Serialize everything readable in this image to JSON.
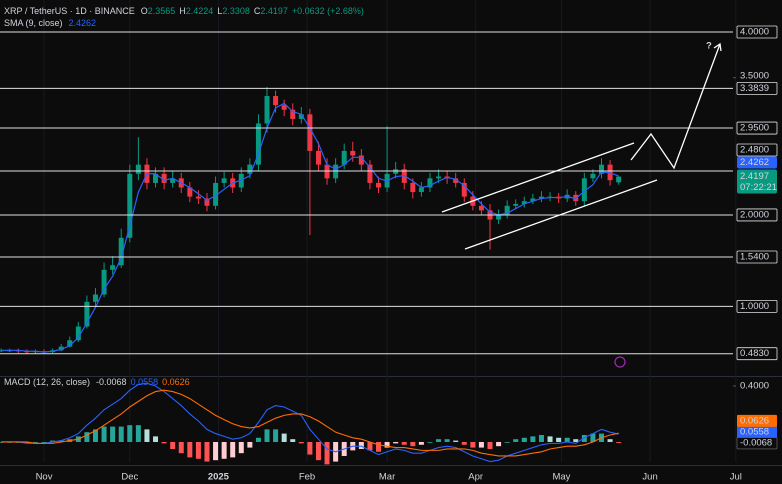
{
  "chart_data": [
    {
      "type": "candlestick",
      "title": "XRP / TetherUS · 1D · BINANCE",
      "ohlc_letters": [
        "O",
        "H",
        "L",
        "C"
      ],
      "change": "+0.0632 (+2.68%)",
      "countdown": "07:22:21",
      "annotation": "?",
      "up_color": "#089981",
      "down_color": "#f23645",
      "xlim": [
        -0.4,
        256
      ],
      "xticks": [
        {
          "value": 15,
          "label": "Nov"
        },
        {
          "value": 45,
          "label": "Dec"
        },
        {
          "value": 76,
          "label": "2025"
        },
        {
          "value": 107,
          "label": "Feb"
        },
        {
          "value": 135,
          "label": "Mar"
        },
        {
          "value": 166,
          "label": "Apr"
        },
        {
          "value": 196,
          "label": "May"
        },
        {
          "value": 227,
          "label": "Jun"
        },
        {
          "value": 257,
          "label": "Jul"
        }
      ],
      "ylim": [
        0.25,
        4.35
      ],
      "yticks": [
        {
          "value": 3.5,
          "label": "3.5000"
        }
      ],
      "levels": [
        {
          "value": 4.0,
          "label": "4.0000"
        },
        {
          "value": 3.3839,
          "label": "3.3839"
        },
        {
          "value": 2.95,
          "label": "2.9500"
        },
        {
          "value": 2.48,
          "label": "2.4800"
        },
        {
          "value": 2.0,
          "label": "2.0000"
        },
        {
          "value": 1.54,
          "label": "1.5400"
        },
        {
          "value": 1.0,
          "label": "1.0000"
        },
        {
          "value": 0.483,
          "label": "0.4830"
        }
      ],
      "x": [
        0,
        3,
        6,
        9,
        12,
        15,
        18,
        21,
        24,
        27,
        30,
        33,
        36,
        39,
        42,
        45,
        48,
        51,
        54,
        57,
        60,
        63,
        66,
        69,
        72,
        75,
        78,
        81,
        84,
        87,
        90,
        93,
        96,
        99,
        102,
        105,
        108,
        111,
        114,
        117,
        120,
        123,
        126,
        129,
        132,
        135,
        138,
        141,
        144,
        147,
        150,
        153,
        156,
        159,
        162,
        165,
        168,
        171,
        174,
        177,
        180,
        183,
        186,
        189,
        192,
        195,
        198,
        201,
        204,
        207,
        210,
        213,
        216
      ],
      "open": [
        0.52,
        0.52,
        0.52,
        0.51,
        0.5,
        0.51,
        0.5,
        0.52,
        0.56,
        0.63,
        0.78,
        1.05,
        1.13,
        1.4,
        1.45,
        1.75,
        2.45,
        2.55,
        2.35,
        2.45,
        2.35,
        2.4,
        2.3,
        2.2,
        2.18,
        2.1,
        2.35,
        2.4,
        2.3,
        2.45,
        2.55,
        3.0,
        3.3,
        3.2,
        3.15,
        3.05,
        3.1,
        2.7,
        2.55,
        2.4,
        2.55,
        2.7,
        2.65,
        2.55,
        2.35,
        2.3,
        2.45,
        2.5,
        2.35,
        2.25,
        2.3,
        2.4,
        2.42,
        2.4,
        2.35,
        2.2,
        2.1,
        2.05,
        1.95,
        2.0,
        2.1,
        2.12,
        2.15,
        2.18,
        2.2,
        2.2,
        2.18,
        2.22,
        2.15,
        2.4,
        2.45,
        2.55,
        2.3565
      ],
      "high": [
        0.54,
        0.54,
        0.54,
        0.53,
        0.53,
        0.53,
        0.54,
        0.59,
        0.67,
        0.83,
        1.12,
        1.2,
        1.48,
        1.55,
        1.85,
        2.55,
        2.85,
        2.62,
        2.52,
        2.52,
        2.48,
        2.46,
        2.36,
        2.27,
        2.24,
        2.42,
        2.47,
        2.46,
        2.52,
        2.62,
        3.1,
        3.4,
        3.36,
        3.26,
        3.22,
        3.18,
        3.16,
        2.8,
        2.62,
        2.62,
        2.78,
        2.8,
        2.72,
        2.6,
        2.42,
        2.97,
        2.58,
        2.56,
        2.4,
        2.36,
        2.46,
        2.5,
        2.48,
        2.46,
        2.4,
        2.26,
        2.15,
        2.12,
        2.06,
        2.16,
        2.17,
        2.2,
        2.23,
        2.26,
        2.25,
        2.24,
        2.28,
        2.26,
        2.46,
        2.5,
        2.62,
        2.6,
        2.4224
      ],
      "low": [
        0.5,
        0.5,
        0.49,
        0.48,
        0.48,
        0.48,
        0.49,
        0.51,
        0.55,
        0.61,
        0.76,
        1.0,
        1.1,
        1.35,
        1.42,
        1.7,
        2.38,
        2.28,
        2.3,
        2.28,
        2.3,
        2.24,
        2.14,
        2.12,
        2.04,
        2.06,
        2.3,
        2.24,
        2.25,
        2.4,
        2.48,
        2.9,
        3.12,
        3.08,
        2.98,
        3.0,
        1.78,
        2.48,
        2.33,
        2.35,
        2.5,
        2.58,
        2.48,
        2.28,
        2.24,
        2.25,
        2.4,
        2.28,
        2.18,
        2.2,
        2.25,
        2.35,
        2.34,
        2.3,
        2.14,
        2.05,
        2.0,
        1.62,
        1.9,
        1.96,
        2.06,
        2.08,
        2.12,
        2.14,
        2.15,
        2.13,
        2.14,
        2.1,
        2.1,
        2.36,
        2.4,
        2.32,
        2.3308
      ],
      "close": [
        0.52,
        0.52,
        0.51,
        0.5,
        0.51,
        0.5,
        0.52,
        0.56,
        0.63,
        0.78,
        1.05,
        1.13,
        1.4,
        1.45,
        1.75,
        2.45,
        2.55,
        2.35,
        2.45,
        2.35,
        2.4,
        2.3,
        2.2,
        2.18,
        2.1,
        2.35,
        2.4,
        2.3,
        2.45,
        2.55,
        3.0,
        3.3,
        3.2,
        3.15,
        3.05,
        3.1,
        2.7,
        2.55,
        2.4,
        2.55,
        2.7,
        2.65,
        2.55,
        2.35,
        2.3,
        2.45,
        2.5,
        2.35,
        2.25,
        2.3,
        2.4,
        2.42,
        2.4,
        2.35,
        2.2,
        2.1,
        2.05,
        1.95,
        2.0,
        2.1,
        2.12,
        2.15,
        2.18,
        2.2,
        2.2,
        2.18,
        2.22,
        2.15,
        2.4,
        2.45,
        2.55,
        2.38,
        2.4197
      ],
      "series": [
        {
          "name": "SMA (9, close)",
          "color": "#2962ff",
          "values": [
            0.52,
            0.52,
            0.52,
            0.51,
            0.51,
            0.5,
            0.51,
            0.53,
            0.57,
            0.66,
            0.82,
            0.99,
            1.19,
            1.33,
            1.53,
            1.88,
            2.25,
            2.45,
            2.45,
            2.38,
            2.4,
            2.35,
            2.3,
            2.23,
            2.16,
            2.21,
            2.28,
            2.35,
            2.38,
            2.43,
            2.67,
            2.95,
            3.17,
            3.22,
            3.13,
            3.1,
            2.95,
            2.78,
            2.55,
            2.5,
            2.55,
            2.63,
            2.63,
            2.52,
            2.4,
            2.37,
            2.42,
            2.43,
            2.37,
            2.3,
            2.32,
            2.37,
            2.41,
            2.39,
            2.32,
            2.22,
            2.12,
            2.03,
            2.0,
            2.02,
            2.07,
            2.12,
            2.15,
            2.18,
            2.19,
            2.19,
            2.2,
            2.18,
            2.26,
            2.33,
            2.47,
            2.46,
            2.4262
          ]
        }
      ]
    },
    {
      "type": "macd",
      "title": "MACD (12, 26, close)",
      "ylim": [
        -0.143,
        0.457
      ],
      "yticks": [
        {
          "value": 0.4,
          "label": "0.4000"
        }
      ],
      "histogram_colors": [
        "#26a69a",
        "#b2dfdb",
        "#ffcdd2",
        "#ff5252"
      ],
      "histogram": [
        0,
        0,
        0,
        -0.01,
        0,
        0,
        0.01,
        0.01,
        0.02,
        0.04,
        0.07,
        0.09,
        0.11,
        0.11,
        0.11,
        0.12,
        0.12,
        0.09,
        0.04,
        -0.01,
        -0.05,
        -0.08,
        -0.11,
        -0.12,
        -0.14,
        -0.13,
        -0.12,
        -0.11,
        -0.08,
        -0.04,
        0.03,
        0.09,
        0.09,
        0.06,
        0.02,
        -0.01,
        -0.09,
        -0.13,
        -0.16,
        -0.14,
        -0.1,
        -0.06,
        -0.05,
        -0.06,
        -0.07,
        -0.04,
        -0.01,
        -0.02,
        -0.03,
        -0.02,
        0,
        0.02,
        0.02,
        0.01,
        -0.02,
        -0.04,
        -0.04,
        -0.05,
        -0.03,
        0,
        0.02,
        0.03,
        0.04,
        0.05,
        0.04,
        0.03,
        0.03,
        0.02,
        0.05,
        0.06,
        0.06,
        0.02,
        -0.0068
      ],
      "series": [
        {
          "color": "#2962ff",
          "values": [
            0,
            0,
            0,
            -0.01,
            -0.01,
            -0.01,
            0,
            0.01,
            0.03,
            0.06,
            0.12,
            0.17,
            0.23,
            0.27,
            0.31,
            0.37,
            0.41,
            0.42,
            0.4,
            0.36,
            0.31,
            0.26,
            0.2,
            0.15,
            0.09,
            0.06,
            0.04,
            0.02,
            0.03,
            0.06,
            0.14,
            0.23,
            0.26,
            0.25,
            0.22,
            0.19,
            0.09,
            0.02,
            -0.05,
            -0.07,
            -0.05,
            -0.03,
            -0.03,
            -0.06,
            -0.09,
            -0.07,
            -0.05,
            -0.06,
            -0.08,
            -0.08,
            -0.06,
            -0.04,
            -0.03,
            -0.04,
            -0.07,
            -0.1,
            -0.12,
            -0.14,
            -0.13,
            -0.1,
            -0.08,
            -0.06,
            -0.04,
            -0.02,
            -0.01,
            -0.01,
            0,
            -0.01,
            0.03,
            0.06,
            0.09,
            0.07,
            0.0558
          ]
        },
        {
          "color": "#ff6d00",
          "values": [
            0,
            0,
            0,
            0,
            -0.01,
            -0.01,
            -0.01,
            0,
            0.01,
            0.02,
            0.05,
            0.08,
            0.12,
            0.16,
            0.2,
            0.25,
            0.29,
            0.33,
            0.36,
            0.37,
            0.36,
            0.34,
            0.31,
            0.27,
            0.23,
            0.19,
            0.16,
            0.13,
            0.11,
            0.1,
            0.11,
            0.14,
            0.17,
            0.19,
            0.2,
            0.2,
            0.18,
            0.15,
            0.11,
            0.07,
            0.05,
            0.03,
            0.02,
            0,
            -0.02,
            -0.03,
            -0.04,
            -0.04,
            -0.05,
            -0.06,
            -0.06,
            -0.06,
            -0.05,
            -0.05,
            -0.05,
            -0.06,
            -0.08,
            -0.09,
            -0.1,
            -0.1,
            -0.1,
            -0.09,
            -0.08,
            -0.07,
            -0.05,
            -0.04,
            -0.03,
            -0.03,
            -0.02,
            0,
            0.03,
            0.05,
            0.0626
          ]
        }
      ]
    }
  ]
}
